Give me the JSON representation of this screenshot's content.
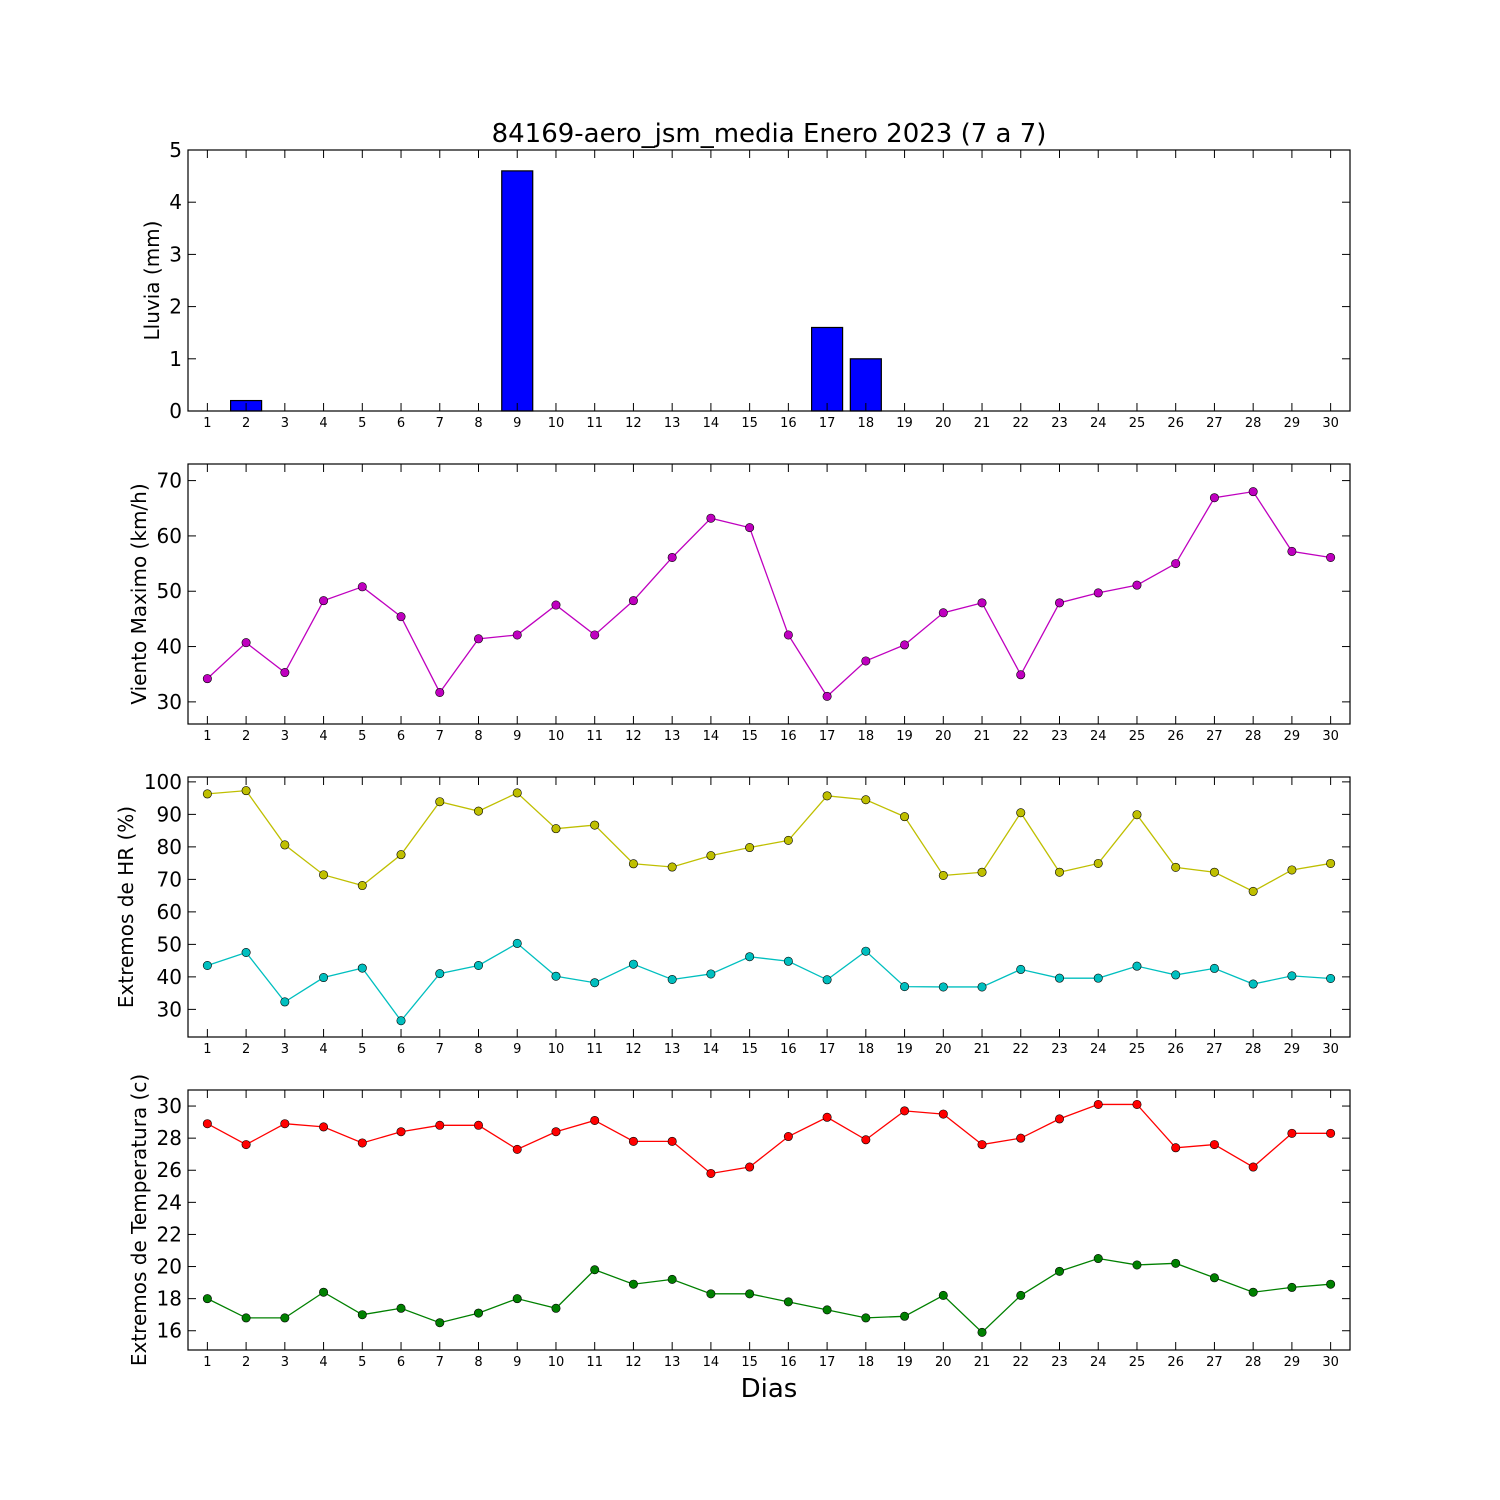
{
  "chart_data": [
    {
      "type": "bar",
      "title": "84169-aero_jsm_media Enero 2023  (7 a 7)",
      "ylabel": "Lluvia (mm)",
      "xlabel": "",
      "x": [
        1,
        2,
        3,
        4,
        5,
        6,
        7,
        8,
        9,
        10,
        11,
        12,
        13,
        14,
        15,
        16,
        17,
        18,
        19,
        20,
        21,
        22,
        23,
        24,
        25,
        26,
        27,
        28,
        29,
        30
      ],
      "series": [
        {
          "color": "#0000ff",
          "values": [
            0,
            0.2,
            0,
            0,
            0,
            0,
            0,
            0,
            4.6,
            0,
            0,
            0,
            0,
            0,
            0,
            0,
            1.6,
            1.0,
            0,
            0,
            0,
            0,
            0,
            0,
            0,
            0,
            0,
            0,
            0,
            0
          ]
        }
      ],
      "ylim": [
        0,
        5
      ],
      "yticks": [
        0,
        1,
        2,
        3,
        4,
        5
      ],
      "grid": false
    },
    {
      "type": "line",
      "title": "",
      "ylabel": "Viento Maximo (km/h)",
      "xlabel": "",
      "x": [
        1,
        2,
        3,
        4,
        5,
        6,
        7,
        8,
        9,
        10,
        11,
        12,
        13,
        14,
        15,
        16,
        17,
        18,
        19,
        20,
        21,
        22,
        23,
        24,
        25,
        26,
        27,
        28,
        29,
        30
      ],
      "series": [
        {
          "color": "#bf00bf",
          "values": [
            34.2,
            40.7,
            35.3,
            48.3,
            50.8,
            45.4,
            31.7,
            41.4,
            42.1,
            47.5,
            42.1,
            48.3,
            56.1,
            63.2,
            61.5,
            42.1,
            31.0,
            37.4,
            40.3,
            46.1,
            47.9,
            34.9,
            47.9,
            49.7,
            51.1,
            55.0,
            66.9,
            68.0,
            57.2,
            56.1
          ]
        }
      ],
      "ylim": [
        26,
        73
      ],
      "yticks": [
        30,
        40,
        50,
        60,
        70
      ],
      "grid": false
    },
    {
      "type": "line",
      "title": "",
      "ylabel": "Extremos de HR (%)",
      "xlabel": "",
      "x": [
        1,
        2,
        3,
        4,
        5,
        6,
        7,
        8,
        9,
        10,
        11,
        12,
        13,
        14,
        15,
        16,
        17,
        18,
        19,
        20,
        21,
        22,
        23,
        24,
        25,
        26,
        27,
        28,
        29,
        30
      ],
      "series": [
        {
          "color": "#bfbf00",
          "values": [
            96.3,
            97.3,
            80.6,
            71.4,
            68.1,
            77.6,
            93.9,
            91.0,
            96.6,
            85.6,
            86.7,
            74.8,
            73.8,
            77.3,
            79.8,
            82.0,
            95.7,
            94.5,
            89.3,
            71.2,
            72.2,
            90.5,
            72.2,
            74.9,
            89.9,
            73.7,
            72.2,
            66.3,
            72.9,
            74.9
          ]
        },
        {
          "color": "#00bfbf",
          "values": [
            43.5,
            47.5,
            32.3,
            39.8,
            42.7,
            26.5,
            41.0,
            43.5,
            50.3,
            40.2,
            38.2,
            43.9,
            39.2,
            40.9,
            46.2,
            44.8,
            39.1,
            47.9,
            37.0,
            36.9,
            36.9,
            42.3,
            39.6,
            39.6,
            43.3,
            40.6,
            42.6,
            37.8,
            40.3,
            39.5
          ]
        }
      ],
      "ylim": [
        21.5,
        101.5
      ],
      "yticks": [
        30,
        40,
        50,
        60,
        70,
        80,
        90,
        100
      ],
      "grid": false
    },
    {
      "type": "line",
      "title": "",
      "ylabel": "Extremos de Temperatura (c)",
      "xlabel": "Dias",
      "x": [
        1,
        2,
        3,
        4,
        5,
        6,
        7,
        8,
        9,
        10,
        11,
        12,
        13,
        14,
        15,
        16,
        17,
        18,
        19,
        20,
        21,
        22,
        23,
        24,
        25,
        26,
        27,
        28,
        29,
        30
      ],
      "series": [
        {
          "color": "#ff0000",
          "values": [
            28.9,
            27.6,
            28.9,
            28.7,
            27.7,
            28.4,
            28.8,
            28.8,
            27.3,
            28.4,
            29.1,
            27.8,
            27.8,
            25.8,
            26.2,
            28.1,
            29.3,
            27.9,
            29.7,
            29.5,
            27.6,
            28.0,
            29.2,
            30.1,
            30.1,
            27.4,
            27.6,
            26.2,
            28.3,
            28.3
          ]
        },
        {
          "color": "#008000",
          "values": [
            18.0,
            16.8,
            16.8,
            18.4,
            17.0,
            17.4,
            16.5,
            17.1,
            18.0,
            17.4,
            19.8,
            18.9,
            19.2,
            18.3,
            18.3,
            17.8,
            17.3,
            16.8,
            16.9,
            18.2,
            15.9,
            18.2,
            19.7,
            20.5,
            20.1,
            20.2,
            19.3,
            18.4,
            18.7,
            18.9
          ]
        }
      ],
      "ylim": [
        14.8,
        31.0
      ],
      "yticks": [
        16,
        18,
        20,
        22,
        24,
        26,
        28,
        30
      ],
      "grid": false
    }
  ]
}
